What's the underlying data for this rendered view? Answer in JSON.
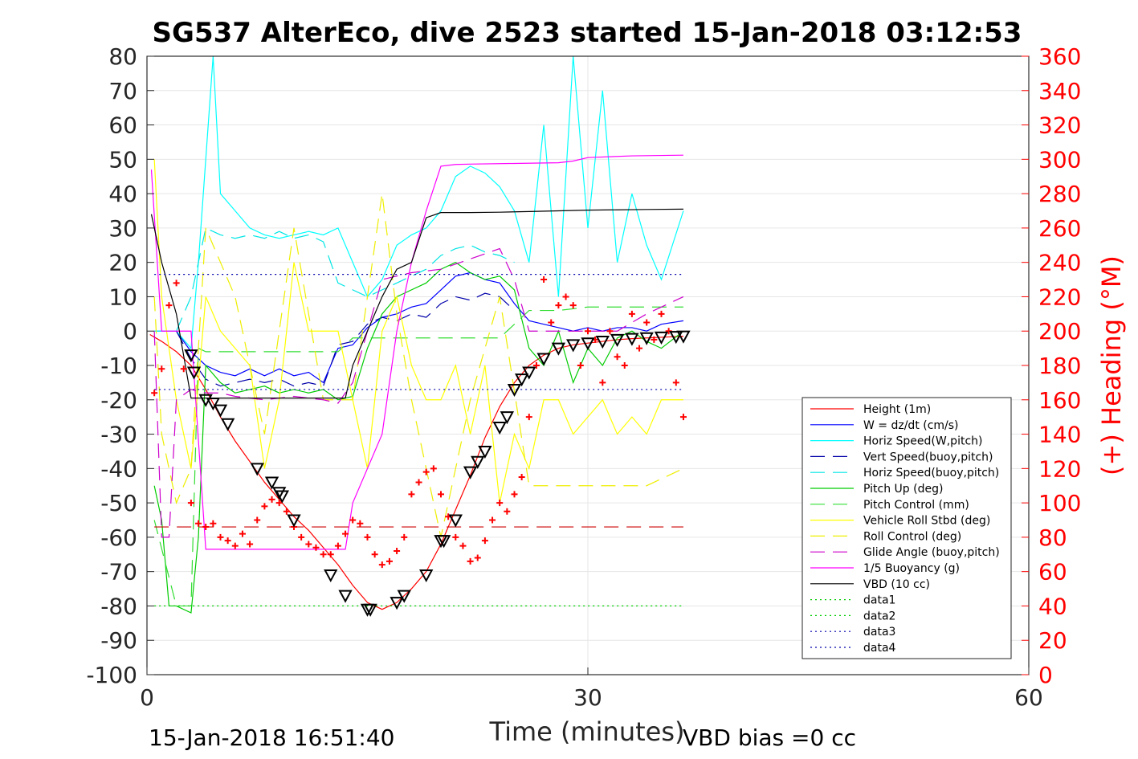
{
  "chart_data": {
    "type": "line",
    "title": "SG537 AlterEco, dive 2523 started 15-Jan-2018 03:12:53",
    "xlabel": "Time (minutes)",
    "ylabel_right": "(+) Heading (°M)",
    "footer_left": "15-Jan-2018 16:51:40",
    "footer_right": "VBD bias =0 cc",
    "xlim": [
      0,
      60
    ],
    "ylim_left": [
      -100,
      80
    ],
    "ylim_right": [
      0,
      360
    ],
    "x_ticks": [
      "0",
      "30",
      "60"
    ],
    "y_ticks_left": [
      "-100",
      "-90",
      "-80",
      "-70",
      "-60",
      "-50",
      "-40",
      "-30",
      "-20",
      "-10",
      "0",
      "10",
      "20",
      "30",
      "40",
      "50",
      "60",
      "70",
      "80"
    ],
    "y_ticks_right": [
      "0",
      "20",
      "40",
      "60",
      "80",
      "100",
      "120",
      "140",
      "160",
      "180",
      "200",
      "220",
      "240",
      "260",
      "280",
      "300",
      "320",
      "340",
      "360"
    ],
    "grid": true,
    "legend_position": "lower-right",
    "series": [
      {
        "name": "Height (1m)",
        "color": "#ff0000",
        "style": "solid",
        "x": [
          0.2,
          1,
          2,
          3,
          4,
          5,
          6,
          7,
          8,
          9,
          10,
          11,
          12,
          13,
          14,
          15,
          16,
          17,
          18,
          19,
          20,
          21,
          22,
          23,
          24,
          25,
          26,
          27,
          28,
          29,
          30,
          31,
          32,
          33,
          34,
          35,
          36.5
        ],
        "y": [
          -1,
          -3,
          -6,
          -10,
          -17,
          -25,
          -32,
          -38,
          -44,
          -49,
          -54,
          -58,
          -63,
          -68,
          -74,
          -79,
          -81,
          -79,
          -75,
          -70,
          -62,
          -52,
          -42,
          -31,
          -22,
          -15,
          -10,
          -7,
          -5,
          -4,
          -3.5,
          -3,
          -2.5,
          -2.2,
          -2,
          -1.8,
          -1.5
        ]
      },
      {
        "name": "W = dz/dt (cm/s)",
        "color": "#0000ff",
        "style": "solid",
        "x": [
          0.5,
          1,
          2,
          3,
          4,
          5,
          6,
          7,
          8,
          9,
          10,
          11,
          12,
          13,
          14,
          15,
          16,
          17,
          18,
          19,
          20,
          21,
          22,
          23,
          24,
          25,
          26,
          27,
          28,
          29,
          30,
          31,
          32,
          33,
          34,
          35,
          36.5
        ],
        "y": [
          0,
          0,
          0,
          -6,
          -10,
          -12,
          -13,
          -11,
          -13,
          -11,
          -13,
          -12,
          -15,
          -5,
          -4,
          1,
          4,
          5,
          7,
          8,
          12,
          16,
          17,
          15,
          14,
          8,
          3,
          2,
          1,
          0,
          1,
          0,
          1,
          1,
          0,
          2,
          3
        ]
      },
      {
        "name": "Horiz Speed(W,pitch)",
        "color": "#00ffff",
        "style": "solid",
        "x": [
          0.5,
          1,
          2,
          3,
          3.5,
          4,
          4.5,
          5,
          6,
          7,
          8,
          9,
          10,
          11,
          12,
          13,
          14,
          15,
          16,
          17,
          18,
          19,
          20,
          21,
          22,
          23,
          24,
          25,
          26,
          27,
          28,
          29,
          30,
          31,
          32,
          33,
          34,
          35,
          36.5
        ],
        "y": [
          0,
          0,
          0,
          -5,
          20,
          50,
          80,
          40,
          35,
          30,
          28,
          27,
          28,
          29,
          28,
          30,
          20,
          10,
          15,
          25,
          28,
          30,
          35,
          45,
          48,
          46,
          42,
          35,
          20,
          60,
          10,
          80,
          30,
          70,
          20,
          40,
          25,
          15,
          35
        ]
      },
      {
        "name": "Vert Speed(buoy,pitch)",
        "color": "#0000aa",
        "style": "dashed",
        "x": [
          2,
          3,
          4,
          5,
          6,
          7,
          8,
          9,
          10,
          11,
          12,
          13,
          14,
          15,
          16,
          17,
          18,
          19,
          20,
          21,
          22,
          23,
          24,
          25
        ],
        "y": [
          0,
          -8,
          -14,
          -16,
          -15,
          -14,
          -15,
          -14,
          -16,
          -15,
          -16,
          -4,
          -3,
          2,
          4,
          3,
          5,
          4,
          8,
          10,
          9,
          11,
          10,
          6
        ]
      },
      {
        "name": "Horiz Speed(buoy,pitch)",
        "color": "#00e5e5",
        "style": "dashed",
        "x": [
          2,
          3,
          4,
          5,
          6,
          7,
          8,
          9,
          10,
          11,
          12,
          13,
          14,
          15,
          16,
          17,
          18,
          19,
          20,
          21,
          22,
          23,
          24,
          25
        ],
        "y": [
          0,
          10,
          30,
          28,
          27,
          28,
          27,
          29,
          27,
          28,
          26,
          14,
          12,
          10,
          12,
          14,
          16,
          18,
          22,
          24,
          25,
          23,
          22,
          20
        ]
      },
      {
        "name": "Pitch Up (deg)",
        "color": "#00cc00",
        "style": "solid",
        "x": [
          0.5,
          1,
          1.5,
          2,
          3,
          3.5,
          4,
          5,
          6,
          7,
          8,
          9,
          10,
          11,
          12,
          13,
          14,
          15,
          16,
          17,
          18,
          19,
          20,
          21,
          22,
          23,
          24,
          25,
          26,
          27,
          28,
          29,
          30,
          31,
          32,
          33,
          34,
          35,
          36.5
        ],
        "y": [
          -45,
          -55,
          -80,
          -80,
          -82,
          -60,
          -10,
          -15,
          -18,
          -17,
          -16,
          -18,
          -17,
          -18,
          -17,
          -20,
          -19,
          -5,
          5,
          10,
          12,
          14,
          18,
          20,
          17,
          15,
          16,
          12,
          -5,
          -10,
          0,
          -15,
          -5,
          -10,
          -2,
          0,
          -3,
          -5,
          0
        ]
      },
      {
        "name": "Pitch Control (mm)",
        "color": "#33dd33",
        "style": "dashed",
        "x": [
          0.5,
          2,
          3,
          3.5,
          4,
          8,
          12,
          13,
          14,
          16,
          18,
          20,
          22,
          24,
          26,
          28,
          30,
          32,
          34,
          36.5
        ],
        "y": [
          -55,
          -80,
          -80,
          -5,
          -6,
          -6,
          -6,
          -6,
          -2,
          -2,
          -2,
          -2,
          -2,
          -2,
          6,
          6,
          7,
          7,
          7,
          7
        ]
      },
      {
        "name": "Vehicle Roll Stbd (deg)",
        "color": "#ffff00",
        "style": "solid",
        "x": [
          0.5,
          1,
          2,
          3,
          4,
          5,
          6,
          7,
          8,
          9,
          10,
          11,
          12,
          13,
          14,
          15,
          16,
          17,
          18,
          19,
          20,
          21,
          22,
          23,
          24,
          25,
          26,
          27,
          28,
          29,
          30,
          31,
          32,
          33,
          34,
          35,
          36.5
        ],
        "y": [
          50,
          10,
          -20,
          -40,
          10,
          0,
          -5,
          -10,
          -40,
          -20,
          20,
          0,
          0,
          0,
          -20,
          -40,
          0,
          10,
          -10,
          -20,
          -20,
          -10,
          -30,
          -10,
          -50,
          -30,
          -40,
          -20,
          -20,
          -30,
          -25,
          -20,
          -30,
          -25,
          -30,
          -20,
          -20
        ]
      },
      {
        "name": "Roll Control (deg)",
        "color": "#eeee00",
        "style": "dashed",
        "x": [
          0.5,
          1,
          2,
          3,
          4,
          6,
          8,
          10,
          12,
          14,
          16,
          17,
          18,
          20,
          22,
          24,
          26,
          28,
          30,
          32,
          34,
          36.5
        ],
        "y": [
          10,
          -30,
          -50,
          -40,
          30,
          10,
          -30,
          30,
          -20,
          -20,
          40,
          5,
          -20,
          -60,
          -20,
          10,
          -45,
          -45,
          -45,
          -45,
          -45,
          -40
        ]
      },
      {
        "name": "Glide Angle (buoy,pitch)",
        "color": "#cc00cc",
        "style": "dashed",
        "x": [
          0.5,
          1,
          1.5,
          2,
          3,
          4,
          5,
          6,
          8,
          10,
          12,
          13,
          14,
          16,
          18,
          20,
          22,
          24,
          25,
          26,
          28,
          30,
          32,
          34,
          36.5
        ],
        "y": [
          0,
          -60,
          -60,
          -20,
          -17,
          -18,
          -18,
          -19,
          -20,
          -19,
          -20,
          -21,
          -15,
          15,
          17,
          18,
          21,
          24,
          15,
          0,
          0,
          0,
          0,
          5,
          10
        ]
      },
      {
        "name": "1/5 Buoyancy (g)",
        "color": "#ff00ff",
        "style": "solid",
        "x": [
          0.3,
          1,
          2,
          3,
          4,
          8,
          12,
          13.5,
          14,
          16,
          17,
          17.5,
          18,
          19,
          20,
          21,
          22,
          25,
          28,
          29,
          30,
          33,
          36.5
        ],
        "y": [
          47,
          0,
          0,
          0,
          -63.5,
          -63.5,
          -63.5,
          -63.5,
          -50,
          -30,
          0,
          10,
          20,
          35,
          48,
          48.5,
          48.6,
          48.8,
          49,
          49.5,
          50.5,
          51,
          51.2
        ]
      },
      {
        "name": "VBD (10 cc)",
        "color": "#000000",
        "style": "solid",
        "x": [
          0.3,
          1,
          2,
          3,
          4,
          8,
          12,
          13.5,
          14,
          15,
          16,
          17,
          17.5,
          18,
          19,
          20,
          22,
          24,
          26,
          28,
          30,
          32,
          34,
          36.5
        ],
        "y": [
          34,
          20,
          5,
          -19.5,
          -19.5,
          -19.5,
          -19.5,
          -19.5,
          -10,
          0,
          10,
          18,
          19,
          20,
          33,
          34.5,
          34.5,
          34.6,
          34.8,
          35,
          35.2,
          35.3,
          35.4,
          35.5
        ]
      },
      {
        "name": "data1",
        "color": "#00cc00",
        "style": "dotted",
        "x": [
          0.5,
          36.5
        ],
        "y": [
          -80,
          -80
        ]
      },
      {
        "name": "data2",
        "color": "#00cc00",
        "style": "dotted",
        "x": [
          0.5,
          36.5
        ],
        "y": [
          -80,
          -80
        ]
      },
      {
        "name": "data3",
        "color": "#0000aa",
        "style": "dotted",
        "x": [
          0.5,
          36.5
        ],
        "y": [
          16.5,
          16.5
        ]
      },
      {
        "name": "data4",
        "color": "#0000aa",
        "style": "dotted",
        "x": [
          0.5,
          36.5
        ],
        "y": [
          -17,
          -17
        ]
      }
    ],
    "extra_lines": [
      {
        "color": "#cc0000",
        "style": "dashed",
        "axis": "right",
        "x": [
          0.5,
          36.5
        ],
        "y": [
          86,
          86
        ]
      }
    ],
    "heading_points": {
      "color": "#ff0000",
      "marker": "+",
      "axis": "right",
      "x": [
        0.5,
        1,
        1.5,
        2,
        2.5,
        3,
        3.5,
        4,
        4.5,
        5,
        5.5,
        6,
        6.5,
        7,
        7.5,
        8,
        8.5,
        9,
        9.5,
        10,
        10.5,
        11,
        11.5,
        12,
        12.5,
        13,
        13.5,
        14,
        14.5,
        15,
        15.5,
        16,
        16.5,
        17,
        17.5,
        18,
        18.5,
        19,
        19.5,
        20,
        20.5,
        21,
        21.5,
        22,
        22.5,
        23,
        23.5,
        24,
        24.5,
        25,
        25.5,
        26,
        26.5,
        27,
        27.5,
        28,
        28.5,
        29,
        29.5,
        30,
        30.5,
        31,
        31.5,
        32,
        32.5,
        33,
        33.5,
        34,
        34.5,
        35,
        35.5,
        36,
        36.5
      ],
      "y": [
        164,
        178,
        215,
        228,
        178,
        100,
        88,
        86,
        88,
        80,
        78,
        75,
        82,
        76,
        90,
        98,
        102,
        100,
        95,
        86,
        80,
        76,
        74,
        70,
        70,
        75,
        82,
        90,
        88,
        80,
        70,
        64,
        66,
        72,
        80,
        105,
        112,
        118,
        120,
        105,
        92,
        80,
        75,
        66,
        68,
        78,
        90,
        100,
        95,
        105,
        115,
        150,
        180,
        230,
        205,
        215,
        220,
        215,
        180,
        200,
        195,
        170,
        200,
        185,
        180,
        210,
        190,
        205,
        195,
        210,
        200,
        170,
        150
      ]
    },
    "height_markers": {
      "color": "#000000",
      "marker": "triangle",
      "axis": "left",
      "x": [
        3,
        3.2,
        4,
        4.5,
        5,
        5.5,
        7.5,
        8.5,
        9,
        9.2,
        10,
        12.5,
        13.5,
        15,
        15.2,
        17,
        17.5,
        19,
        20,
        20.2,
        21,
        22,
        22.5,
        23,
        24,
        24.5,
        25,
        25.5,
        26,
        27,
        28,
        29,
        30,
        31,
        32,
        33,
        34,
        35,
        36,
        36.5
      ],
      "y": [
        -7,
        -12,
        -20,
        -21,
        -23,
        -27,
        -40,
        -44,
        -47,
        -48,
        -55,
        -71,
        -77,
        -81,
        -81,
        -79,
        -77,
        -71,
        -61,
        -61,
        -55,
        -41,
        -38,
        -35,
        -28,
        -25,
        -17,
        -14,
        -12,
        -8,
        -5,
        -4,
        -3.5,
        -3,
        -2.5,
        -2.2,
        -2,
        -1.8,
        -1.6,
        -1.5
      ]
    }
  }
}
